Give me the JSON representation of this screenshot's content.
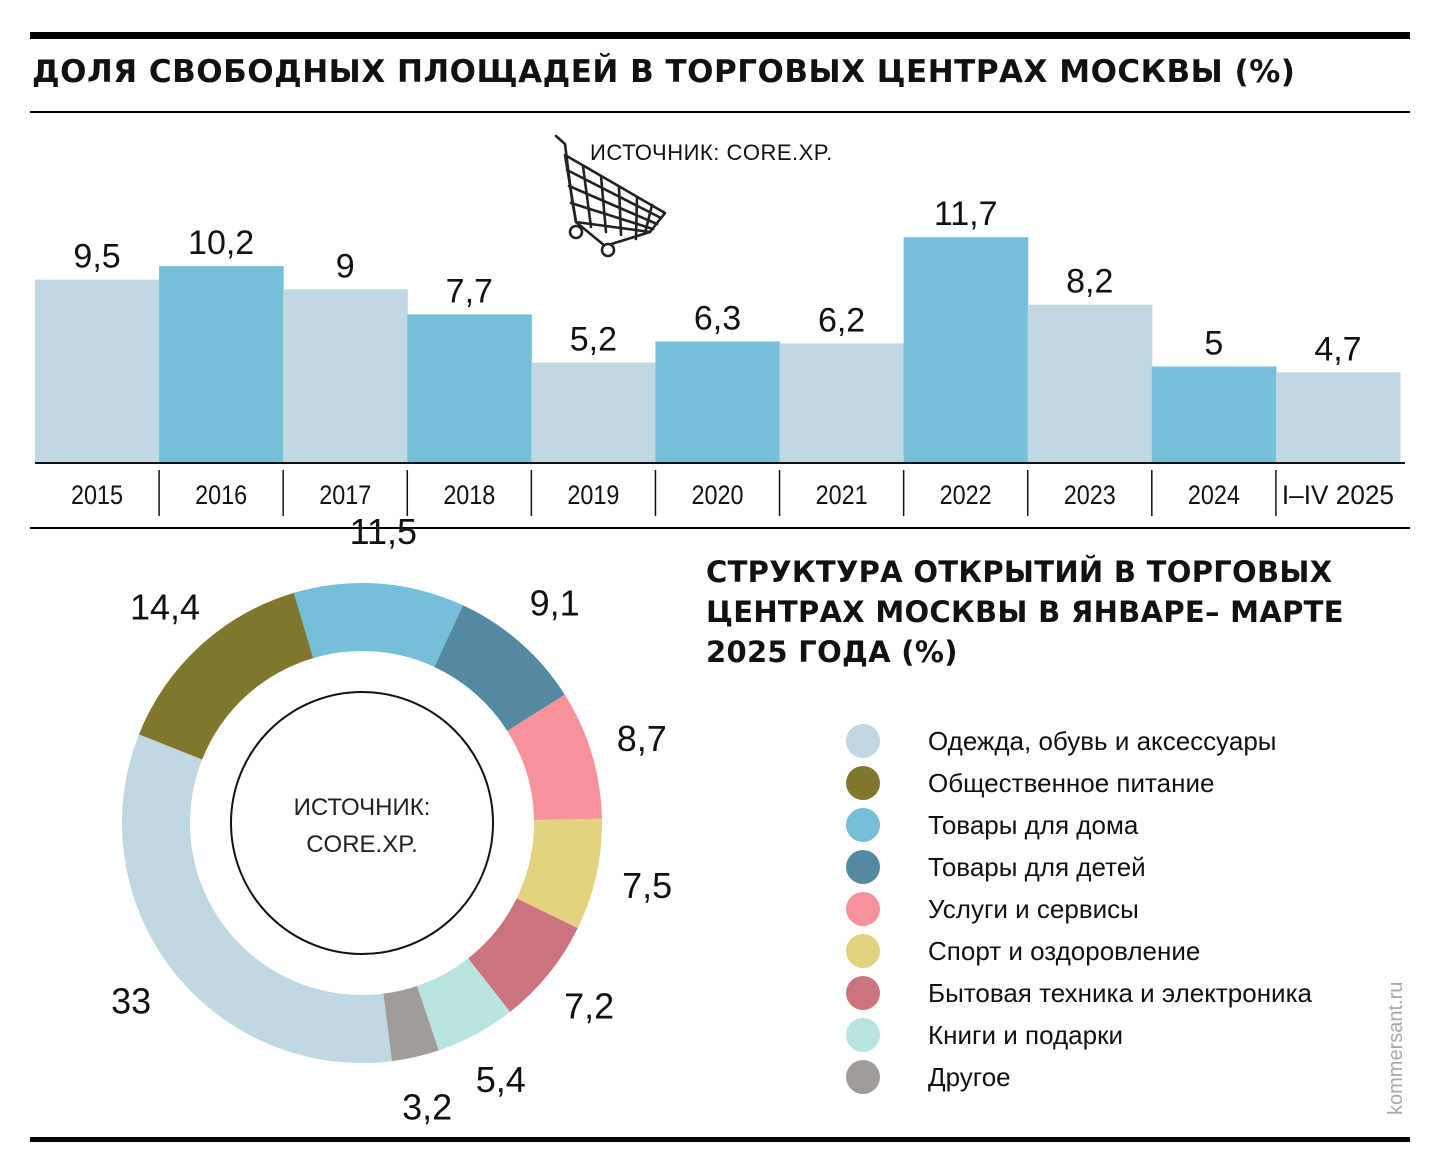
{
  "bar_title": "ДОЛЯ СВОБОДНЫХ ПЛОЩАДЕЙ В ТОРГОВЫХ ЦЕНТРАХ МОСКВЫ (%)",
  "bar_source": "ИСТОЧНИК: CORE.XP.",
  "donut_title": "СТРУКТУРА ОТКРЫТИЙ В ТОРГОВЫХ ЦЕНТРАХ МОСКВЫ В ЯНВАРЕ– МАРТЕ 2025 ГОДА (%)",
  "donut_source_line1": "ИСТОЧНИК:",
  "donut_source_line2": "CORE.XP.",
  "credit": "kommersant.ru",
  "colors": {
    "bar_light": "#c0d8e1",
    "bar_blue": "#75bfd8",
    "ink": "#111111"
  },
  "icons": {
    "cart": "shopping-cart-icon"
  },
  "chart_data": [
    {
      "type": "bar",
      "categories": [
        "2015",
        "2016",
        "2017",
        "2018",
        "2019",
        "2020",
        "2021",
        "2022",
        "2023",
        "2024",
        "I–IV 2025"
      ],
      "values": [
        9.5,
        10.2,
        9,
        7.7,
        5.2,
        6.3,
        6.2,
        11.7,
        8.2,
        5,
        4.7
      ],
      "value_labels": [
        "9,5",
        "10,2",
        "9",
        "7,7",
        "5,2",
        "6,3",
        "6,2",
        "11,7",
        "8,2",
        "5",
        "4,7"
      ],
      "highlight": [
        false,
        true,
        false,
        true,
        false,
        true,
        false,
        true,
        false,
        true,
        false
      ],
      "title": "ДОЛЯ СВОБОДНЫХ ПЛОЩАДЕЙ В ТОРГОВЫХ ЦЕНТРАХ МОСКВЫ (%)",
      "ylim": [
        0,
        12
      ],
      "grid": false
    },
    {
      "type": "pie",
      "style": "donut",
      "title": "СТРУКТУРА ОТКРЫТИЙ В ТОРГОВЫХ ЦЕНТРАХ МОСКВЫ В ЯНВАРЕ– МАРТЕ 2025 ГОДА (%)",
      "slices": [
        {
          "label": "Товары для дома",
          "value": 11.5,
          "value_label": "11,5",
          "color": "#75bfd8"
        },
        {
          "label": "Товары для детей",
          "value": 9.1,
          "value_label": "9,1",
          "color": "#538aa1"
        },
        {
          "label": "Услуги и сервисы",
          "value": 8.7,
          "value_label": "8,7",
          "color": "#f7919a"
        },
        {
          "label": "Спорт и оздоровление",
          "value": 7.5,
          "value_label": "7,5",
          "color": "#e3d280"
        },
        {
          "label": "Бытовая техника и электроника",
          "value": 7.2,
          "value_label": "7,2",
          "color": "#cb737e"
        },
        {
          "label": "Книги и подарки",
          "value": 5.4,
          "value_label": "5,4",
          "color": "#b8e5df"
        },
        {
          "label": "Другое",
          "value": 3.2,
          "value_label": "3,2",
          "color": "#a19c98"
        },
        {
          "label": "Одежда, обувь и аксессуары",
          "value": 33,
          "value_label": "33",
          "color": "#c0d8e1"
        },
        {
          "label": "Общественное питание",
          "value": 14.4,
          "value_label": "14,4",
          "color": "#7f772b"
        }
      ],
      "legend": [
        {
          "label": "Одежда, обувь и аксессуары",
          "color": "#c0d8e1"
        },
        {
          "label": "Общественное питание",
          "color": "#7f772b"
        },
        {
          "label": "Товары для дома",
          "color": "#75bfd8"
        },
        {
          "label": "Товары для детей",
          "color": "#538aa1"
        },
        {
          "label": "Услуги и сервисы",
          "color": "#f7919a"
        },
        {
          "label": "Спорт и оздоровление",
          "color": "#e3d280"
        },
        {
          "label": "Бытовая техника и электроника",
          "color": "#cb737e"
        },
        {
          "label": "Книги и подарки",
          "color": "#b8e5df"
        },
        {
          "label": "Другое",
          "color": "#a19c98"
        }
      ],
      "legend_position": "right"
    }
  ]
}
